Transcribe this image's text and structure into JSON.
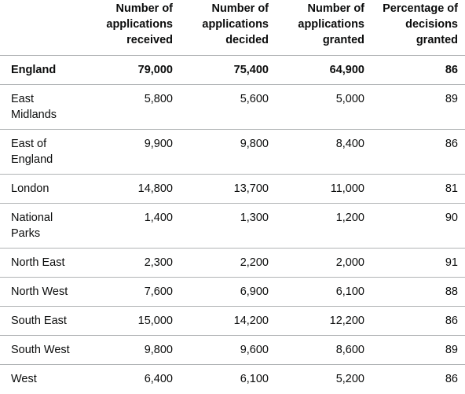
{
  "headers": [
    "Number of applications received",
    "Number of applications decided",
    "Number of applications granted",
    "Percentage of decisions granted"
  ],
  "rows": [
    {
      "name": "England",
      "received": "79,000",
      "decided": "75,400",
      "granted": "64,900",
      "pct": "86"
    },
    {
      "name": "East Midlands",
      "received": "5,800",
      "decided": "5,600",
      "granted": "5,000",
      "pct": "89"
    },
    {
      "name": "East of England",
      "received": "9,900",
      "decided": "9,800",
      "granted": "8,400",
      "pct": "86"
    },
    {
      "name": "London",
      "received": "14,800",
      "decided": "13,700",
      "granted": "11,000",
      "pct": "81"
    },
    {
      "name": "National Parks",
      "received": "1,400",
      "decided": "1,300",
      "granted": "1,200",
      "pct": "90"
    },
    {
      "name": "North East",
      "received": "2,300",
      "decided": "2,200",
      "granted": "2,000",
      "pct": "91"
    },
    {
      "name": "North West",
      "received": "7,600",
      "decided": "6,900",
      "granted": "6,100",
      "pct": "88"
    },
    {
      "name": "South East",
      "received": "15,000",
      "decided": "14,200",
      "granted": "12,200",
      "pct": "86"
    },
    {
      "name": "South West",
      "received": "9,800",
      "decided": "9,600",
      "granted": "8,600",
      "pct": "89"
    },
    {
      "name": "West",
      "received": "6,400",
      "decided": "6,100",
      "granted": "5,200",
      "pct": "86"
    }
  ]
}
